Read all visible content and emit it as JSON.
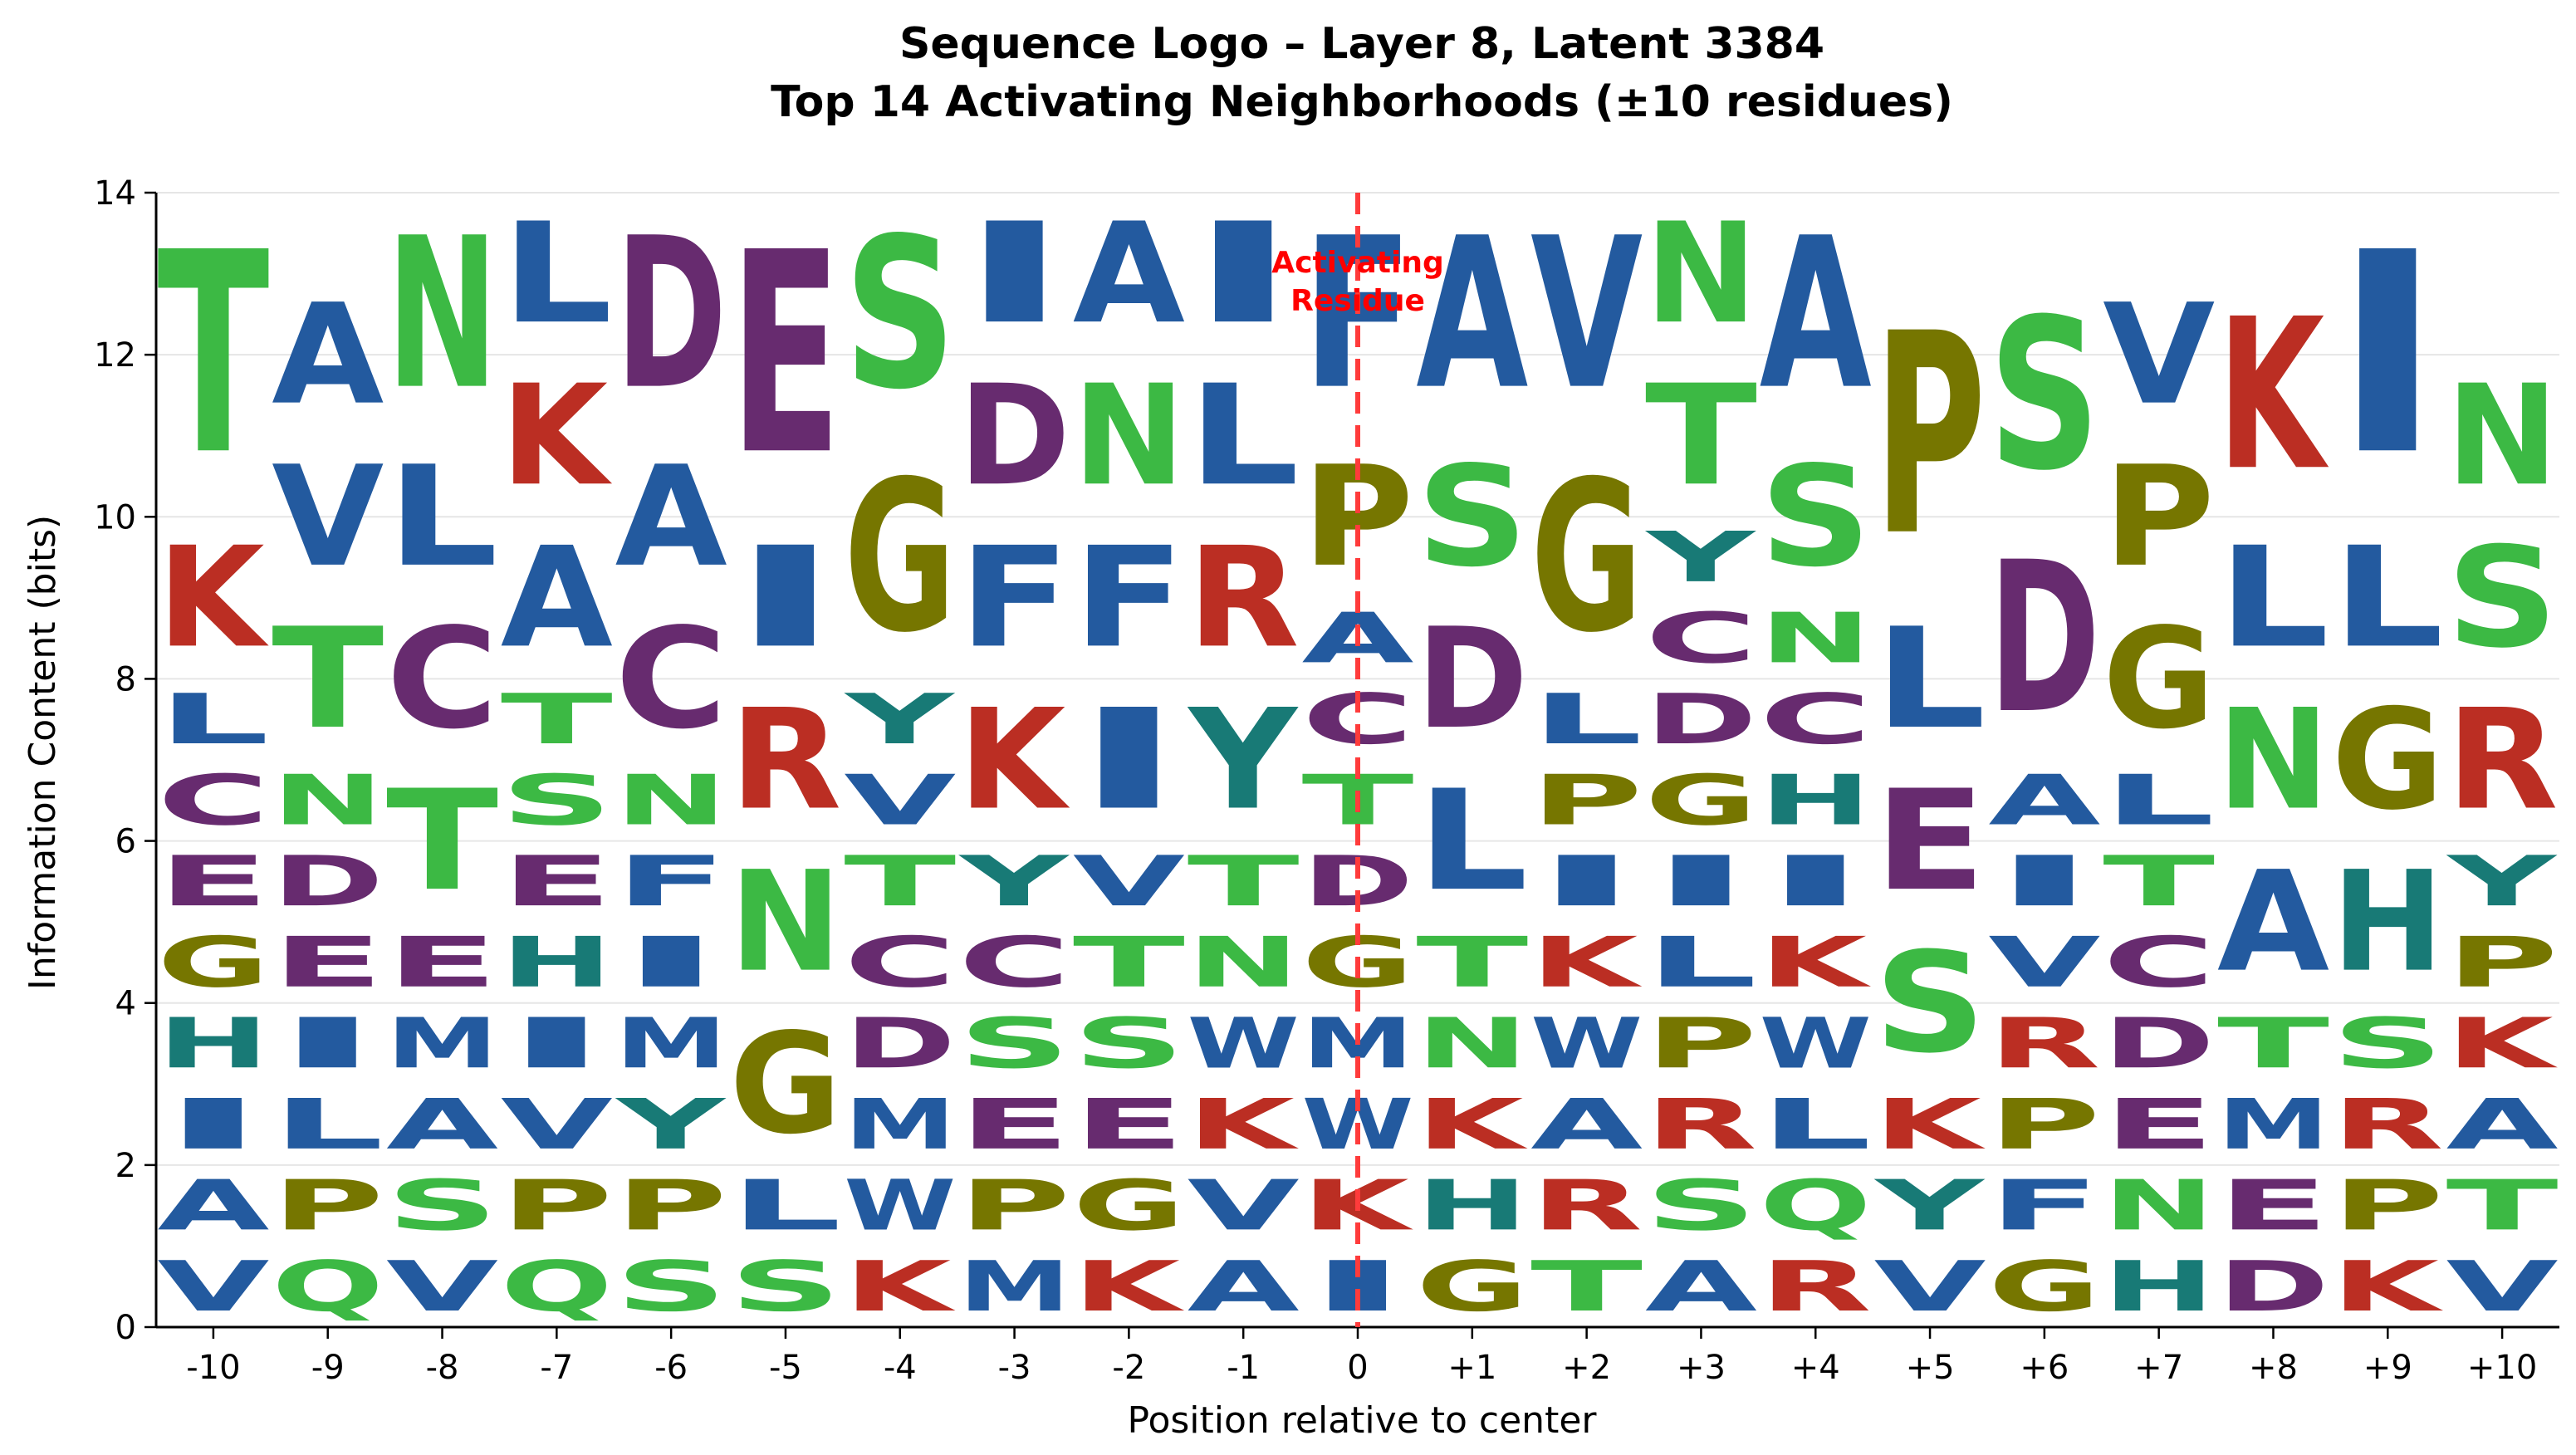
{
  "chart_data": {
    "type": "sequence-logo",
    "title": "Sequence Logo – Layer 8, Latent 3384",
    "subtitle": "Top 14 Activating Neighborhoods (±10 residues)",
    "xlabel": "Position relative to center",
    "ylabel": "Information Content (bits)",
    "ylim": [
      0,
      14
    ],
    "yticks": [
      "0",
      "2",
      "4",
      "6",
      "8",
      "10",
      "12",
      "14"
    ],
    "grid": "horizontal",
    "annotation": {
      "text_lines": [
        "Activating",
        "Residue"
      ],
      "color": "#ff0000",
      "x_position": "0"
    },
    "colors": {
      "hydrophobic": "#235a9f",
      "polar": "#3cb944",
      "acidic": "#672b6f",
      "basic": "#bb2e23",
      "special": "#767600",
      "aromatic": "#187a76",
      "marker_line": "#ff3b3b"
    },
    "color_map": {
      "A": "hydrophobic",
      "V": "hydrophobic",
      "L": "hydrophobic",
      "I": "hydrophobic",
      "M": "hydrophobic",
      "F": "hydrophobic",
      "W": "hydrophobic",
      "S": "polar",
      "T": "polar",
      "N": "polar",
      "Q": "polar",
      "D": "acidic",
      "E": "acidic",
      "C": "acidic",
      "K": "basic",
      "R": "basic",
      "G": "special",
      "P": "special",
      "H": "aromatic",
      "Y": "aromatic"
    },
    "positions": [
      {
        "label": "-10",
        "stack": [
          [
            "V",
            1
          ],
          [
            "A",
            1
          ],
          [
            "I",
            1
          ],
          [
            "H",
            1
          ],
          [
            "G",
            1
          ],
          [
            "E",
            1
          ],
          [
            "C",
            1
          ],
          [
            "L",
            1
          ],
          [
            "K",
            2
          ],
          [
            "T",
            4
          ]
        ]
      },
      {
        "label": "-9",
        "stack": [
          [
            "Q",
            1
          ],
          [
            "P",
            1
          ],
          [
            "L",
            1
          ],
          [
            "I",
            1
          ],
          [
            "E",
            1
          ],
          [
            "D",
            1
          ],
          [
            "N",
            1
          ],
          [
            "T",
            2
          ],
          [
            "V",
            2
          ],
          [
            "A",
            2
          ]
        ]
      },
      {
        "label": "-8",
        "stack": [
          [
            "V",
            1
          ],
          [
            "S",
            1
          ],
          [
            "A",
            1
          ],
          [
            "M",
            1
          ],
          [
            "E",
            1
          ],
          [
            "T",
            2
          ],
          [
            "C",
            2
          ],
          [
            "L",
            2
          ],
          [
            "N",
            3
          ]
        ]
      },
      {
        "label": "-7",
        "stack": [
          [
            "Q",
            1
          ],
          [
            "P",
            1
          ],
          [
            "V",
            1
          ],
          [
            "I",
            1
          ],
          [
            "H",
            1
          ],
          [
            "E",
            1
          ],
          [
            "S",
            1
          ],
          [
            "T",
            1
          ],
          [
            "A",
            2
          ],
          [
            "K",
            2
          ],
          [
            "L",
            2
          ]
        ]
      },
      {
        "label": "-6",
        "stack": [
          [
            "S",
            1
          ],
          [
            "P",
            1
          ],
          [
            "Y",
            1
          ],
          [
            "M",
            1
          ],
          [
            "I",
            1
          ],
          [
            "F",
            1
          ],
          [
            "N",
            1
          ],
          [
            "C",
            2
          ],
          [
            "A",
            2
          ],
          [
            "D",
            3
          ]
        ]
      },
      {
        "label": "-5",
        "stack": [
          [
            "S",
            1
          ],
          [
            "L",
            1
          ],
          [
            "G",
            2
          ],
          [
            "N",
            2
          ],
          [
            "R",
            2
          ],
          [
            "I",
            2
          ],
          [
            "E",
            4
          ]
        ]
      },
      {
        "label": "-4",
        "stack": [
          [
            "K",
            1
          ],
          [
            "W",
            1
          ],
          [
            "M",
            1
          ],
          [
            "D",
            1
          ],
          [
            "C",
            1
          ],
          [
            "T",
            1
          ],
          [
            "V",
            1
          ],
          [
            "Y",
            1
          ],
          [
            "G",
            3
          ],
          [
            "S",
            3
          ]
        ]
      },
      {
        "label": "-3",
        "stack": [
          [
            "M",
            1
          ],
          [
            "P",
            1
          ],
          [
            "E",
            1
          ],
          [
            "S",
            1
          ],
          [
            "C",
            1
          ],
          [
            "Y",
            1
          ],
          [
            "K",
            2
          ],
          [
            "F",
            2
          ],
          [
            "D",
            2
          ],
          [
            "I",
            2
          ]
        ]
      },
      {
        "label": "-2",
        "stack": [
          [
            "K",
            1
          ],
          [
            "G",
            1
          ],
          [
            "E",
            1
          ],
          [
            "S",
            1
          ],
          [
            "T",
            1
          ],
          [
            "V",
            1
          ],
          [
            "I",
            2
          ],
          [
            "F",
            2
          ],
          [
            "N",
            2
          ],
          [
            "A",
            2
          ]
        ]
      },
      {
        "label": "-1",
        "stack": [
          [
            "A",
            1
          ],
          [
            "V",
            1
          ],
          [
            "K",
            1
          ],
          [
            "W",
            1
          ],
          [
            "N",
            1
          ],
          [
            "T",
            1
          ],
          [
            "Y",
            2
          ],
          [
            "R",
            2
          ],
          [
            "L",
            2
          ],
          [
            "I",
            2
          ]
        ]
      },
      {
        "label": "0",
        "stack": [
          [
            "I",
            1
          ],
          [
            "K",
            1
          ],
          [
            "W",
            1
          ],
          [
            "M",
            1
          ],
          [
            "G",
            1
          ],
          [
            "D",
            1
          ],
          [
            "T",
            1
          ],
          [
            "C",
            1
          ],
          [
            "A",
            1
          ],
          [
            "P",
            2
          ],
          [
            "F",
            3
          ]
        ]
      },
      {
        "label": "+1",
        "stack": [
          [
            "G",
            1
          ],
          [
            "H",
            1
          ],
          [
            "K",
            1
          ],
          [
            "N",
            1
          ],
          [
            "T",
            1
          ],
          [
            "L",
            2
          ],
          [
            "D",
            2
          ],
          [
            "S",
            2
          ],
          [
            "A",
            3
          ]
        ]
      },
      {
        "label": "+2",
        "stack": [
          [
            "T",
            1
          ],
          [
            "R",
            1
          ],
          [
            "A",
            1
          ],
          [
            "W",
            1
          ],
          [
            "K",
            1
          ],
          [
            "I",
            1
          ],
          [
            "P",
            1
          ],
          [
            "L",
            1
          ],
          [
            "G",
            3
          ],
          [
            "V",
            3
          ]
        ]
      },
      {
        "label": "+3",
        "stack": [
          [
            "A",
            1
          ],
          [
            "S",
            1
          ],
          [
            "R",
            1
          ],
          [
            "P",
            1
          ],
          [
            "L",
            1
          ],
          [
            "I",
            1
          ],
          [
            "G",
            1
          ],
          [
            "D",
            1
          ],
          [
            "C",
            1
          ],
          [
            "Y",
            1
          ],
          [
            "T",
            2
          ],
          [
            "N",
            2
          ]
        ]
      },
      {
        "label": "+4",
        "stack": [
          [
            "R",
            1
          ],
          [
            "Q",
            1
          ],
          [
            "L",
            1
          ],
          [
            "W",
            1
          ],
          [
            "K",
            1
          ],
          [
            "I",
            1
          ],
          [
            "H",
            1
          ],
          [
            "C",
            1
          ],
          [
            "N",
            1
          ],
          [
            "S",
            2
          ],
          [
            "A",
            3
          ]
        ]
      },
      {
        "label": "+5",
        "stack": [
          [
            "V",
            1
          ],
          [
            "Y",
            1
          ],
          [
            "K",
            1
          ],
          [
            "S",
            2
          ],
          [
            "E",
            2
          ],
          [
            "L",
            2
          ],
          [
            "P",
            4
          ]
        ]
      },
      {
        "label": "+6",
        "stack": [
          [
            "G",
            1
          ],
          [
            "F",
            1
          ],
          [
            "P",
            1
          ],
          [
            "R",
            1
          ],
          [
            "V",
            1
          ],
          [
            "I",
            1
          ],
          [
            "A",
            1
          ],
          [
            "D",
            3
          ],
          [
            "S",
            3
          ]
        ]
      },
      {
        "label": "+7",
        "stack": [
          [
            "H",
            1
          ],
          [
            "N",
            1
          ],
          [
            "E",
            1
          ],
          [
            "D",
            1
          ],
          [
            "C",
            1
          ],
          [
            "T",
            1
          ],
          [
            "L",
            1
          ],
          [
            "G",
            2
          ],
          [
            "P",
            2
          ],
          [
            "V",
            2
          ]
        ]
      },
      {
        "label": "+8",
        "stack": [
          [
            "D",
            1
          ],
          [
            "E",
            1
          ],
          [
            "M",
            1
          ],
          [
            "T",
            1
          ],
          [
            "A",
            2
          ],
          [
            "N",
            2
          ],
          [
            "L",
            2
          ],
          [
            "K",
            3
          ]
        ]
      },
      {
        "label": "+9",
        "stack": [
          [
            "K",
            1
          ],
          [
            "P",
            1
          ],
          [
            "R",
            1
          ],
          [
            "S",
            1
          ],
          [
            "H",
            2
          ],
          [
            "G",
            2
          ],
          [
            "L",
            2
          ],
          [
            "I",
            4
          ]
        ]
      },
      {
        "label": "+10",
        "stack": [
          [
            "V",
            1
          ],
          [
            "T",
            1
          ],
          [
            "A",
            1
          ],
          [
            "K",
            1
          ],
          [
            "P",
            1
          ],
          [
            "Y",
            1
          ],
          [
            "R",
            2
          ],
          [
            "S",
            2
          ],
          [
            "N",
            2
          ]
        ]
      }
    ]
  }
}
